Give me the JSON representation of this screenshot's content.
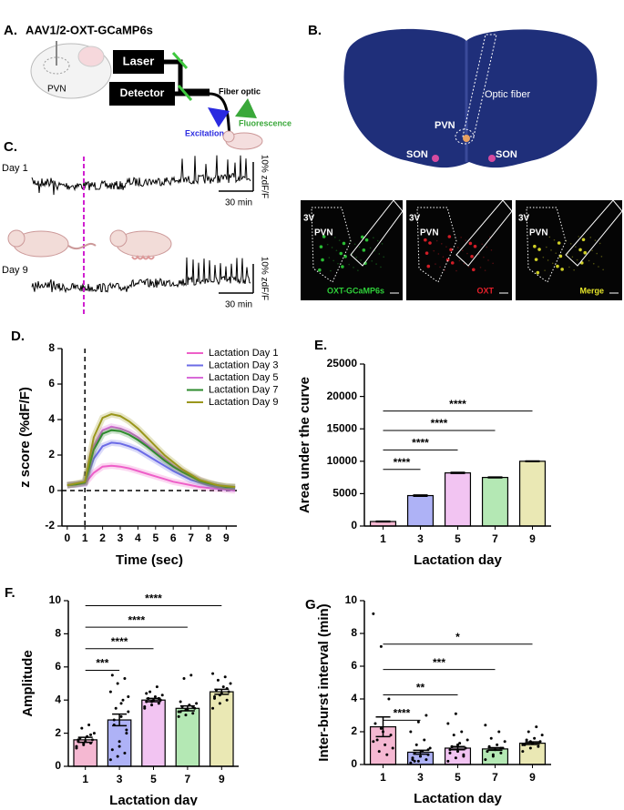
{
  "panels": {
    "a": {
      "label": "A.",
      "title": "AAV1/2-OXT-GCaMP6s",
      "region": "PVN",
      "laser": "Laser",
      "detector": "Detector",
      "fiber_optic": "Fiber optic",
      "excitation": "Excitation",
      "fluorescence": "Fluorescence"
    },
    "b": {
      "label": "B.",
      "optic_fiber": "Optic fiber",
      "region": "PVN",
      "son_left": "SON",
      "son_right": "SON",
      "micrographs": [
        {
          "labels": [
            "3V",
            "PVN"
          ],
          "caption": "OXT-GCaMP6s",
          "color": "#2fd13a"
        },
        {
          "labels": [
            "3V",
            "PVN"
          ],
          "caption": "OXT",
          "color": "#e8202a"
        },
        {
          "labels": [
            "3V",
            "PVN"
          ],
          "caption": "Merge",
          "color": "#e6e62a"
        }
      ]
    },
    "c": {
      "label": "C.",
      "traces": [
        {
          "name": "Day 1",
          "scale_y": "10% zdF/F",
          "scale_x": "30 min"
        },
        {
          "name": "Day 9",
          "scale_y": "10% zdF/F",
          "scale_x": "30 min"
        }
      ]
    }
  },
  "chart_data": [
    {
      "type": "line",
      "panel_label": "D.",
      "xlabel": "Time (sec)",
      "ylabel": "z score (%dF/F)",
      "x": [
        0,
        0.5,
        1,
        1.5,
        2,
        2.5,
        3,
        3.5,
        4,
        4.5,
        5,
        5.5,
        6,
        6.5,
        7,
        7.5,
        8,
        8.5,
        9,
        9.5
      ],
      "xlim": [
        -0.3,
        9.6
      ],
      "ylim": [
        -2,
        8
      ],
      "xticks": [
        0,
        1,
        2,
        3,
        4,
        5,
        6,
        7,
        8,
        9
      ],
      "yticks": [
        -2,
        0,
        2,
        4,
        6,
        8
      ],
      "vline": 1,
      "hline": 0,
      "legend": "upper right",
      "series": [
        {
          "name": "Lactation Day 1",
          "color": "#ee5fc8",
          "values": [
            0.3,
            0.35,
            0.4,
            1.0,
            1.35,
            1.4,
            1.35,
            1.25,
            1.1,
            0.95,
            0.8,
            0.65,
            0.5,
            0.4,
            0.3,
            0.2,
            0.15,
            0.1,
            0.05,
            0.0
          ]
        },
        {
          "name": "Lactation Day 3",
          "color": "#6b6be6",
          "values": [
            0.3,
            0.35,
            0.4,
            1.8,
            2.5,
            2.7,
            2.65,
            2.5,
            2.3,
            2.0,
            1.7,
            1.4,
            1.1,
            0.85,
            0.6,
            0.45,
            0.3,
            0.2,
            0.15,
            0.1
          ]
        },
        {
          "name": "Lactation Day 5",
          "color": "#d86ad8",
          "values": [
            0.3,
            0.35,
            0.45,
            2.5,
            3.4,
            3.6,
            3.5,
            3.3,
            3.0,
            2.6,
            2.2,
            1.8,
            1.4,
            1.1,
            0.8,
            0.6,
            0.4,
            0.3,
            0.2,
            0.2
          ]
        },
        {
          "name": "Lactation Day 7",
          "color": "#2e8b2e",
          "values": [
            0.3,
            0.35,
            0.45,
            2.3,
            3.2,
            3.4,
            3.35,
            3.15,
            2.85,
            2.5,
            2.1,
            1.7,
            1.35,
            1.05,
            0.8,
            0.55,
            0.4,
            0.3,
            0.2,
            0.2
          ]
        },
        {
          "name": "Lactation Day 9",
          "color": "#9a961c",
          "values": [
            0.3,
            0.4,
            0.5,
            3.0,
            4.1,
            4.3,
            4.2,
            3.9,
            3.5,
            3.0,
            2.5,
            2.0,
            1.6,
            1.2,
            0.9,
            0.6,
            0.45,
            0.3,
            0.25,
            0.2
          ]
        }
      ]
    },
    {
      "type": "bar",
      "panel_label": "E.",
      "xlabel": "Lactation day",
      "ylabel": "Area under the curve",
      "categories": [
        "1",
        "3",
        "5",
        "7",
        "9"
      ],
      "values": [
        700,
        4700,
        8200,
        7500,
        10000
      ],
      "errors": [
        50,
        100,
        80,
        60,
        50
      ],
      "colors": [
        "#f5b8d2",
        "#aeb2f6",
        "#f2c4f2",
        "#b4e8b4",
        "#eae8b4"
      ],
      "ylim": [
        0,
        25000
      ],
      "yticks": [
        0,
        5000,
        10000,
        15000,
        20000,
        25000
      ],
      "comparisons": [
        {
          "pair": [
            "1",
            "3"
          ],
          "label": "****"
        },
        {
          "pair": [
            "1",
            "5"
          ],
          "label": "****"
        },
        {
          "pair": [
            "1",
            "7"
          ],
          "label": "****"
        },
        {
          "pair": [
            "1",
            "9"
          ],
          "label": "****"
        }
      ]
    },
    {
      "type": "bar",
      "panel_label": "F.",
      "xlabel": "Lactation day",
      "ylabel": "Amplitude",
      "categories": [
        "1",
        "3",
        "5",
        "7",
        "9"
      ],
      "values": [
        1.6,
        2.8,
        4.0,
        3.5,
        4.5
      ],
      "errors": [
        0.15,
        0.35,
        0.1,
        0.15,
        0.15
      ],
      "colors": [
        "#f5b8d2",
        "#aeb2f6",
        "#f2c4f2",
        "#b4e8b4",
        "#eae8b4"
      ],
      "ylim": [
        0,
        10
      ],
      "yticks": [
        0,
        2,
        4,
        6,
        8,
        10
      ],
      "points": [
        [
          1.2,
          1.3,
          1.4,
          1.5,
          1.5,
          1.6,
          1.7,
          1.8,
          2.0,
          2.3,
          2.5,
          1.1,
          1.4,
          1.9,
          1.6
        ],
        [
          0.4,
          0.6,
          0.8,
          1.0,
          1.5,
          2.0,
          2.5,
          3.0,
          3.3,
          3.5,
          4.0,
          4.5,
          5.0,
          5.3,
          5.5,
          1.2,
          2.2,
          2.8,
          3.8,
          4.2
        ],
        [
          3.5,
          3.7,
          3.8,
          3.9,
          4.0,
          4.0,
          4.1,
          4.2,
          4.3,
          4.5,
          4.8,
          3.6,
          3.9,
          4.1,
          4.4
        ],
        [
          3.0,
          3.1,
          3.2,
          3.3,
          3.4,
          3.5,
          3.6,
          3.7,
          3.8,
          5.3,
          5.5,
          3.3,
          3.4,
          3.6,
          3.9
        ],
        [
          3.5,
          3.8,
          4.0,
          4.2,
          4.4,
          4.5,
          4.6,
          4.8,
          5.0,
          5.2,
          5.4,
          5.6,
          4.3,
          4.7,
          4.1
        ]
      ],
      "comparisons": [
        {
          "pair": [
            "1",
            "3"
          ],
          "label": "***"
        },
        {
          "pair": [
            "1",
            "5"
          ],
          "label": "****"
        },
        {
          "pair": [
            "1",
            "7"
          ],
          "label": "****"
        },
        {
          "pair": [
            "1",
            "9"
          ],
          "label": "****"
        }
      ]
    },
    {
      "type": "bar",
      "panel_label": "G.",
      "xlabel": "Lactation day",
      "ylabel": "Inter-burst interval (min)",
      "categories": [
        "1",
        "3",
        "5",
        "7",
        "9"
      ],
      "values": [
        2.3,
        0.75,
        1.0,
        0.95,
        1.3
      ],
      "errors": [
        0.6,
        0.12,
        0.1,
        0.08,
        0.08
      ],
      "colors": [
        "#f5b8d2",
        "#aeb2f6",
        "#f2c4f2",
        "#b4e8b4",
        "#eae8b4"
      ],
      "ylim": [
        0,
        10
      ],
      "yticks": [
        0,
        2,
        4,
        6,
        8,
        10
      ],
      "points": [
        [
          9.2,
          7.2,
          4.0,
          2.5,
          2.0,
          1.8,
          1.5,
          1.2,
          1.0,
          0.8,
          0.6,
          1.4,
          2.2
        ],
        [
          0.1,
          0.2,
          0.3,
          0.4,
          0.5,
          0.6,
          0.7,
          0.8,
          1.0,
          1.2,
          1.5,
          2.0,
          2.6,
          3.0,
          0.3,
          0.5,
          0.9,
          0.2
        ],
        [
          0.2,
          0.4,
          0.5,
          0.7,
          0.8,
          1.0,
          1.1,
          1.3,
          1.5,
          1.8,
          2.0,
          2.5,
          3.1,
          0.6,
          0.9,
          1.2
        ],
        [
          0.3,
          0.5,
          0.7,
          0.8,
          0.9,
          1.0,
          1.1,
          1.2,
          1.4,
          1.6,
          2.0,
          2.4,
          0.6,
          1.0
        ],
        [
          0.8,
          1.0,
          1.1,
          1.2,
          1.3,
          1.4,
          1.5,
          1.6,
          1.8,
          2.0,
          2.3,
          1.2,
          1.4
        ]
      ],
      "comparisons": [
        {
          "pair": [
            "1",
            "3"
          ],
          "label": "****"
        },
        {
          "pair": [
            "1",
            "5"
          ],
          "label": "**"
        },
        {
          "pair": [
            "1",
            "7"
          ],
          "label": "***"
        },
        {
          "pair": [
            "1",
            "9"
          ],
          "label": "*"
        }
      ]
    }
  ]
}
